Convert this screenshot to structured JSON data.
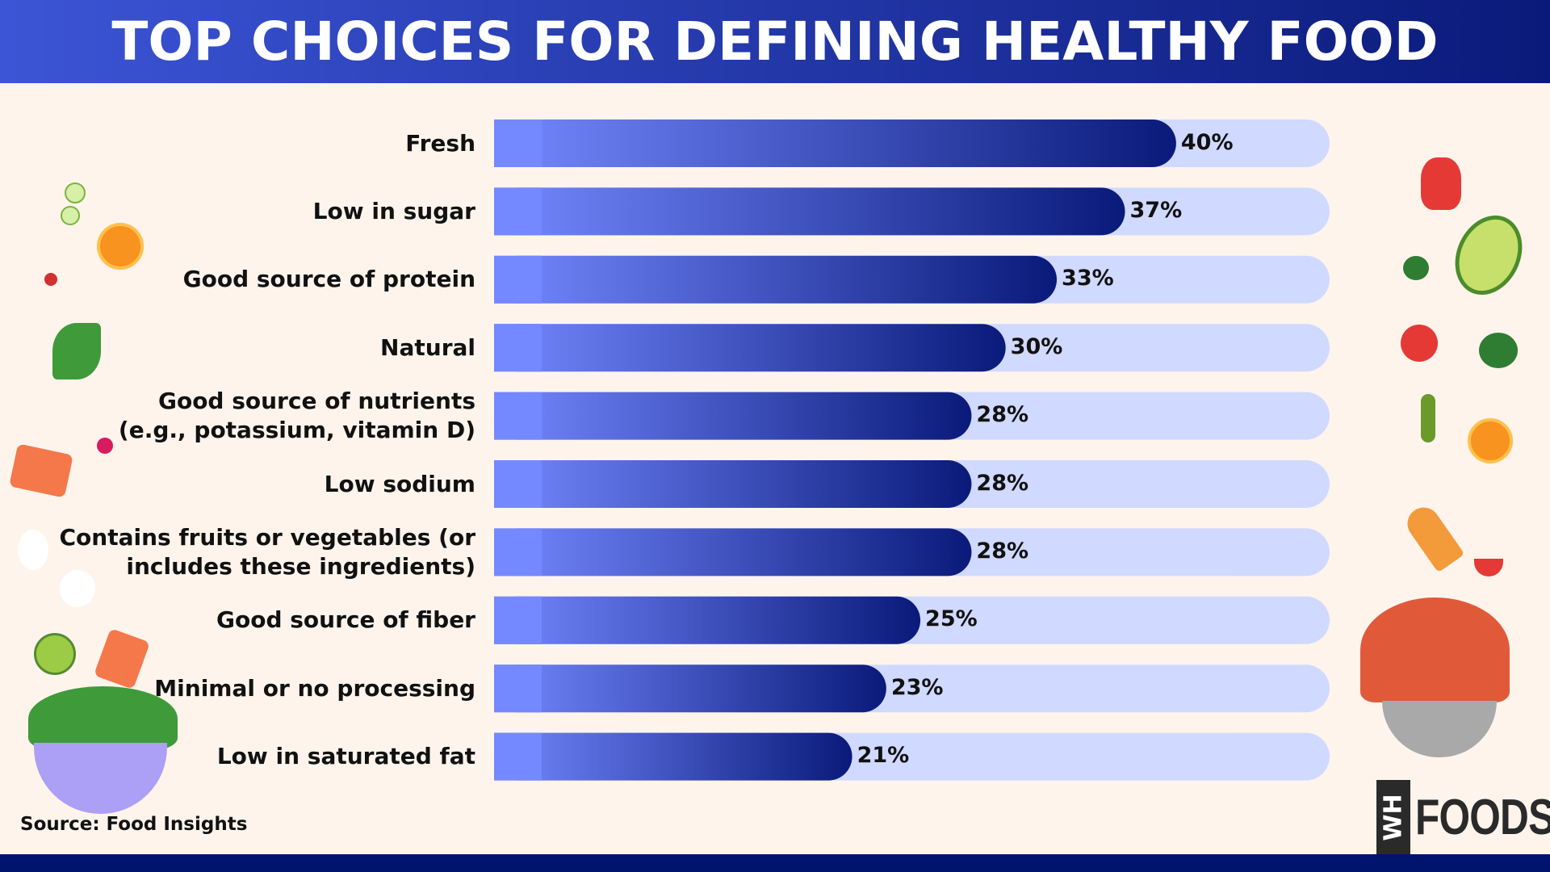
{
  "header": {
    "title": "TOP CHOICES FOR DEFINING HEALTHY FOOD"
  },
  "source": "Source: Food Insights",
  "logo": {
    "mark": "WH",
    "text": "FOODS"
  },
  "colors": {
    "bar_start": "#7489ff",
    "bar_end": "#0a1a7a",
    "track": "#d0d9ff",
    "background": "#fef4ec",
    "header": "#1f2fa8",
    "footer": "#00146e"
  },
  "chart_data": {
    "type": "bar",
    "orientation": "horizontal",
    "categories": [
      "Fresh",
      "Low in sugar",
      "Good source of protein",
      "Natural",
      "Good source of nutrients (e.g., potassium, vitamin D)",
      "Low sodium",
      "Contains fruits or vegetables (or includes these ingredients)",
      "Good source of fiber",
      "Minimal or no processing",
      "Low in saturated fat"
    ],
    "category_lines": [
      [
        "Fresh"
      ],
      [
        "Low in sugar"
      ],
      [
        "Good source of protein"
      ],
      [
        "Natural"
      ],
      [
        "Good source of nutrients",
        "(e.g., potassium, vitamin D)"
      ],
      [
        "Low sodium"
      ],
      [
        "Contains fruits or vegetables (or",
        "includes these ingredients)"
      ],
      [
        "Good source of fiber"
      ],
      [
        "Minimal or no processing"
      ],
      [
        "Low in saturated fat"
      ]
    ],
    "values": [
      40,
      37,
      33,
      30,
      28,
      28,
      28,
      25,
      23,
      21
    ],
    "value_labels": [
      "40%",
      "37%",
      "33%",
      "30%",
      "28%",
      "28%",
      "28%",
      "25%",
      "23%",
      "21%"
    ],
    "unit": "%",
    "xlim": [
      0,
      49
    ],
    "grid": false,
    "title": "TOP CHOICES FOR DEFINING HEALTHY FOOD"
  }
}
